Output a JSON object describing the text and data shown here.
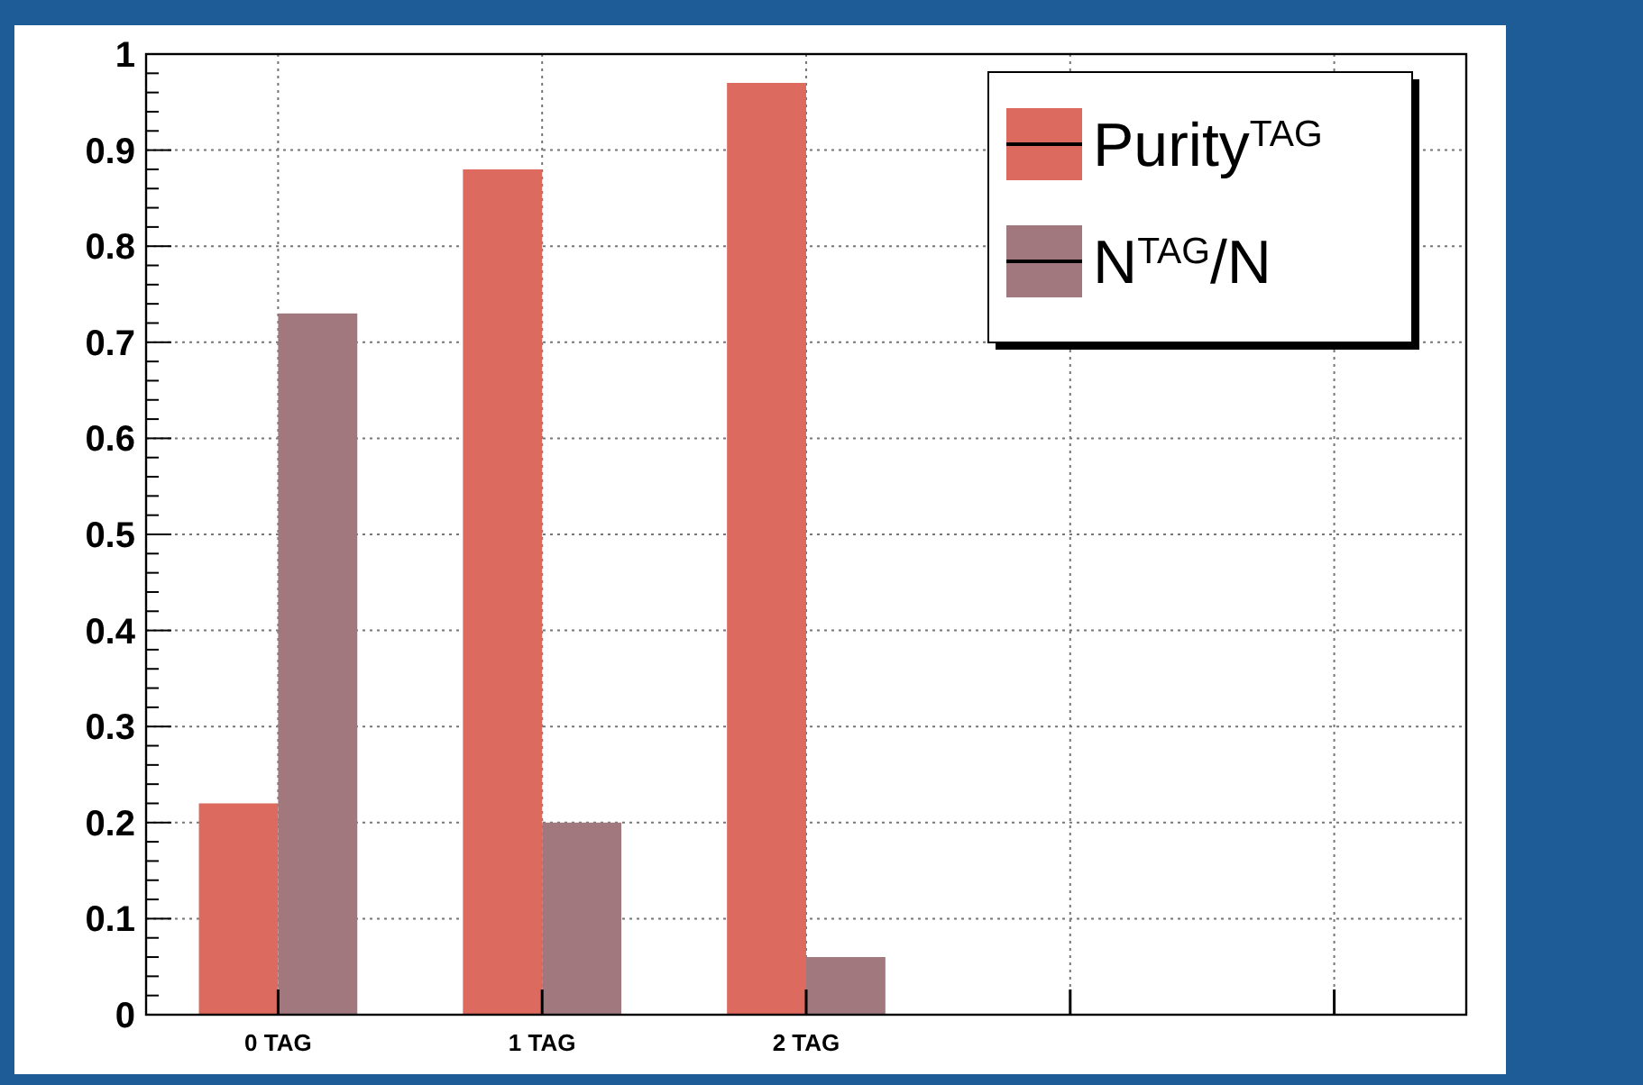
{
  "chart_data": {
    "type": "bar",
    "categories": [
      "0 TAG",
      "1 TAG",
      "2 TAG",
      null,
      null
    ],
    "series": [
      {
        "name": "Purity$^{TAG}$",
        "color": "#dc6a5e",
        "values": [
          0.22,
          0.88,
          0.97,
          null,
          null
        ]
      },
      {
        "name": "N$^{TAG}$/N",
        "color": "#a0787e",
        "values": [
          0.73,
          0.2,
          0.06,
          null,
          null
        ]
      }
    ],
    "ylim": [
      0,
      1
    ],
    "yticks": [
      0,
      0.1,
      0.2,
      0.3,
      0.4,
      0.5,
      0.6,
      0.7,
      0.8,
      0.9,
      1
    ],
    "grid": true,
    "legend": "top right"
  }
}
